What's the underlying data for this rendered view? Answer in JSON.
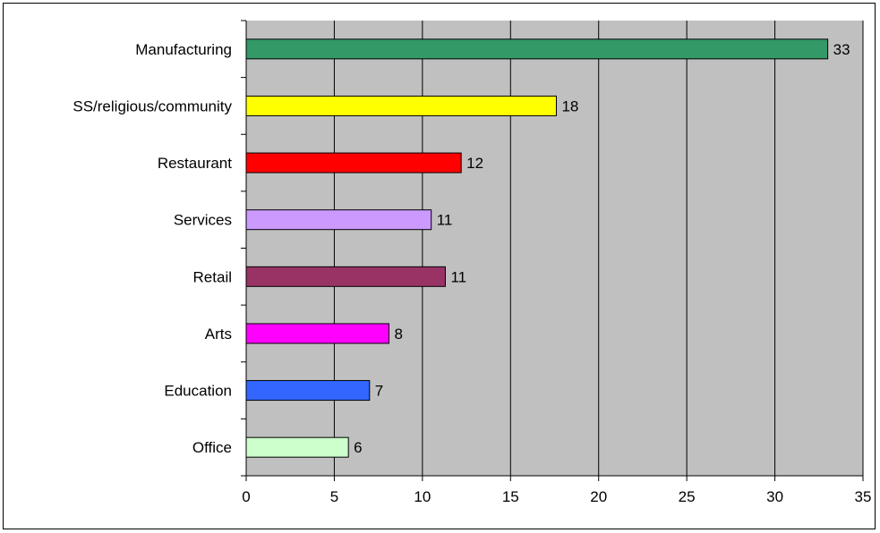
{
  "chart_data": {
    "type": "bar",
    "orientation": "horizontal",
    "categories": [
      "Manufacturing",
      "SS/religious/community",
      "Restaurant",
      "Services",
      "Retail",
      "Arts",
      "Education",
      "Office"
    ],
    "values": [
      33,
      17.6,
      12.2,
      10.5,
      11.3,
      8.1,
      7.0,
      5.8
    ],
    "data_labels": [
      "33",
      "18",
      "12",
      "11",
      "11",
      "8",
      "7",
      "6"
    ],
    "colors": [
      "#339966",
      "#ffff00",
      "#ff0000",
      "#cc99ff",
      "#993366",
      "#ff00ff",
      "#3366ff",
      "#ccffcc"
    ],
    "xlim": [
      0,
      35
    ],
    "xticks": [
      0,
      5,
      10,
      15,
      20,
      25,
      30,
      35
    ],
    "grid": "vertical",
    "plot_background": "#c0c0c0",
    "legend": "none"
  }
}
